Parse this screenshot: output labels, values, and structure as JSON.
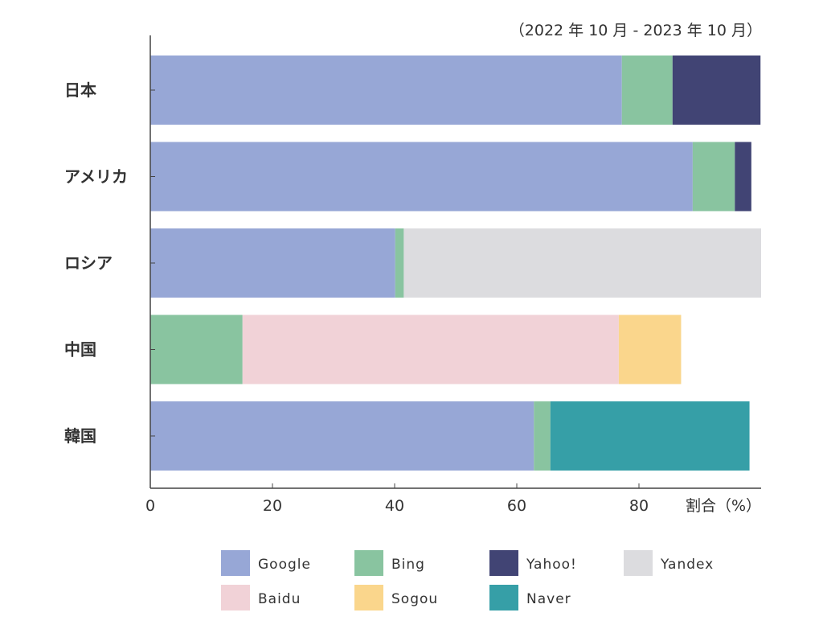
{
  "chart_data": {
    "type": "bar",
    "orientation": "horizontal",
    "stacked": true,
    "period": "（2022 年 10 月 - 2023 年 10 月）",
    "axis_unit": "割合（%）",
    "xlim": [
      0,
      100
    ],
    "x_ticks": [
      0,
      20,
      40,
      60,
      80
    ],
    "grid": false,
    "legend_position": "bottom",
    "categories": [
      "日本",
      "アメリカ",
      "ロシア",
      "中国",
      "韓国"
    ],
    "series": [
      {
        "name": "Google",
        "color": "#97a7d6",
        "values": [
          77.2,
          88.8,
          40.1,
          0,
          62.8
        ]
      },
      {
        "name": "Bing",
        "color": "#89c4a0",
        "values": [
          8.3,
          6.9,
          1.4,
          15.1,
          2.7
        ]
      },
      {
        "name": "Yahoo!",
        "color": "#414474",
        "values": [
          14.4,
          2.7,
          0,
          0,
          0
        ]
      },
      {
        "name": "Yandex",
        "color": "#dcdcdf",
        "values": [
          0,
          0,
          58.5,
          0,
          0
        ]
      },
      {
        "name": "Baidu",
        "color": "#f1d2d7",
        "values": [
          0,
          0,
          0,
          61.6,
          0
        ]
      },
      {
        "name": "Sogou",
        "color": "#fad68c",
        "values": [
          0,
          0,
          0,
          10.2,
          0
        ]
      },
      {
        "name": "Naver",
        "color": "#369fa7",
        "values": [
          0,
          0,
          0,
          0,
          32.6
        ]
      }
    ]
  }
}
